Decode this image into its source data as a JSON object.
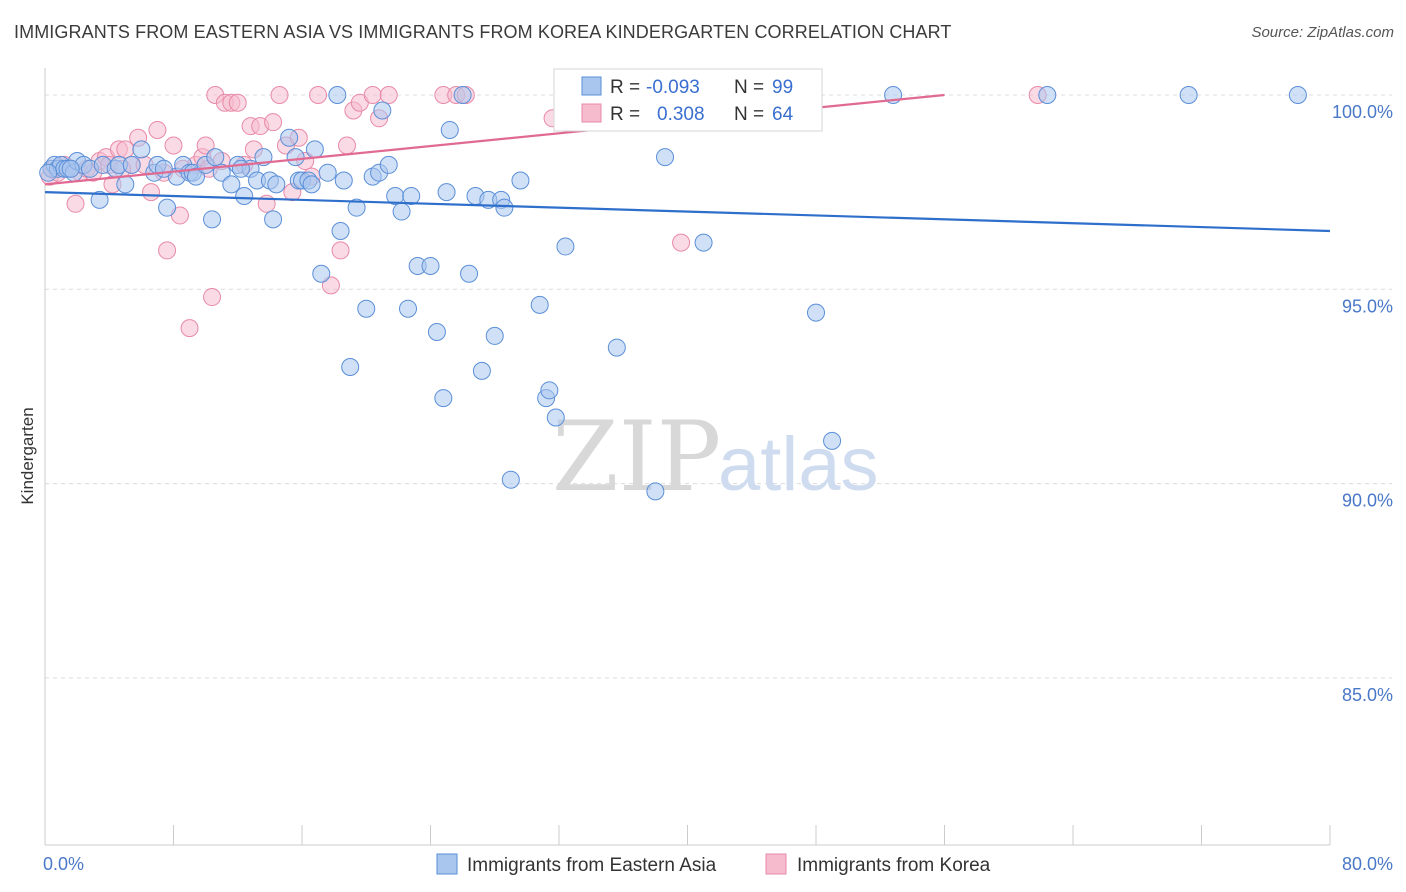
{
  "header": {
    "title": "IMMIGRANTS FROM EASTERN ASIA VS IMMIGRANTS FROM KOREA KINDERGARTEN CORRELATION CHART",
    "source": "Source: ZipAtlas.com"
  },
  "watermark": {
    "zip": "ZIP",
    "atlas": "atlas"
  },
  "colors": {
    "blue_fill": "#a9c6ee",
    "blue_stroke": "#5b8fd8",
    "blue_line": "#2f6fcc",
    "pink_fill": "#f6bccd",
    "pink_stroke": "#e88aa8",
    "pink_line": "#e06a92",
    "grid": "#dcdcdc",
    "tick_text": "#4a78c8"
  },
  "stats": {
    "r_label": "R =",
    "n_label": "N =",
    "rows": [
      {
        "r": "-0.093",
        "n": "99",
        "color": "blue"
      },
      {
        "r": "0.308",
        "n": "64",
        "color": "pink"
      }
    ]
  },
  "legend": {
    "items": [
      {
        "label": "Immigrants from Eastern Asia",
        "color": "blue"
      },
      {
        "label": "Immigrants from Korea",
        "color": "pink"
      }
    ]
  },
  "chart_data": {
    "type": "scatter",
    "title": "IMMIGRANTS FROM EASTERN ASIA VS IMMIGRANTS FROM KOREA KINDERGARTEN CORRELATION CHART",
    "xlabel": "",
    "ylabel": "Kindergarten",
    "xlim": [
      0,
      80
    ],
    "ylim": [
      80.7,
      100.9
    ],
    "x_tick_labels": [
      {
        "value": 0,
        "label": "0.0%"
      },
      {
        "value": 80,
        "label": "80.0%"
      }
    ],
    "y_tick_labels": [
      {
        "value": 100,
        "label": "100.0%"
      },
      {
        "value": 95,
        "label": "95.0%"
      },
      {
        "value": 90,
        "label": "90.0%"
      },
      {
        "value": 85,
        "label": "85.0%"
      }
    ],
    "grid": true,
    "legend_position": "bottom-center",
    "series": [
      {
        "name": "Immigrants from Eastern Asia",
        "color": "blue",
        "trend": {
          "x": [
            0,
            80
          ],
          "y": [
            97.5,
            96.5
          ]
        },
        "points": [
          [
            0.4,
            98.1
          ],
          [
            0.6,
            98.2
          ],
          [
            0.8,
            98.1
          ],
          [
            1.0,
            98.2
          ],
          [
            1.2,
            98.1
          ],
          [
            1.4,
            98.1
          ],
          [
            1.8,
            98.0
          ],
          [
            2.0,
            98.3
          ],
          [
            2.4,
            98.2
          ],
          [
            2.8,
            98.1
          ],
          [
            3.4,
            97.3
          ],
          [
            3.6,
            98.2
          ],
          [
            4.4,
            98.1
          ],
          [
            4.6,
            98.2
          ],
          [
            5.0,
            97.7
          ],
          [
            5.4,
            98.2
          ],
          [
            6.0,
            98.6
          ],
          [
            6.8,
            98.0
          ],
          [
            7.0,
            98.2
          ],
          [
            7.6,
            97.1
          ],
          [
            8.2,
            97.9
          ],
          [
            8.6,
            98.2
          ],
          [
            9.0,
            98.0
          ],
          [
            9.2,
            98.0
          ],
          [
            9.4,
            97.9
          ],
          [
            10.0,
            98.2
          ],
          [
            10.4,
            96.8
          ],
          [
            10.6,
            98.4
          ],
          [
            11.0,
            98.0
          ],
          [
            11.6,
            97.7
          ],
          [
            12.0,
            98.2
          ],
          [
            12.4,
            97.4
          ],
          [
            12.8,
            98.1
          ],
          [
            13.2,
            97.8
          ],
          [
            13.6,
            98.4
          ],
          [
            14.0,
            97.8
          ],
          [
            14.2,
            96.8
          ],
          [
            14.4,
            97.7
          ],
          [
            15.2,
            98.9
          ],
          [
            15.6,
            98.4
          ],
          [
            15.8,
            97.8
          ],
          [
            16.0,
            97.8
          ],
          [
            16.4,
            97.8
          ],
          [
            16.6,
            97.7
          ],
          [
            16.8,
            98.6
          ],
          [
            17.2,
            95.4
          ],
          [
            17.6,
            98.0
          ],
          [
            18.2,
            100.0
          ],
          [
            18.4,
            96.5
          ],
          [
            18.6,
            97.8
          ],
          [
            19.0,
            93.0
          ],
          [
            19.4,
            97.1
          ],
          [
            20.0,
            94.5
          ],
          [
            20.4,
            97.9
          ],
          [
            20.8,
            98.0
          ],
          [
            21.0,
            99.6
          ],
          [
            21.4,
            98.2
          ],
          [
            21.8,
            97.4
          ],
          [
            22.2,
            97.0
          ],
          [
            22.6,
            94.5
          ],
          [
            22.8,
            97.4
          ],
          [
            23.2,
            95.6
          ],
          [
            24.0,
            95.6
          ],
          [
            24.4,
            93.9
          ],
          [
            24.8,
            92.2
          ],
          [
            25.0,
            97.5
          ],
          [
            25.2,
            99.1
          ],
          [
            26.0,
            100.0
          ],
          [
            26.4,
            95.4
          ],
          [
            26.8,
            97.4
          ],
          [
            27.2,
            92.9
          ],
          [
            27.6,
            97.3
          ],
          [
            28.0,
            93.8
          ],
          [
            28.4,
            97.3
          ],
          [
            28.6,
            97.1
          ],
          [
            29.0,
            90.1
          ],
          [
            29.6,
            97.8
          ],
          [
            30.8,
            94.6
          ],
          [
            31.2,
            92.2
          ],
          [
            31.4,
            92.4
          ],
          [
            31.8,
            91.7
          ],
          [
            32.4,
            96.1
          ],
          [
            34.0,
            100.0
          ],
          [
            35.6,
            93.5
          ],
          [
            37.4,
            100.0
          ],
          [
            38.0,
            89.8
          ],
          [
            38.6,
            98.4
          ],
          [
            41.0,
            96.2
          ],
          [
            43.4,
            100.0
          ],
          [
            48.0,
            94.4
          ],
          [
            49.0,
            91.1
          ],
          [
            52.8,
            100.0
          ],
          [
            62.4,
            100.0
          ],
          [
            71.2,
            100.0
          ],
          [
            78.0,
            100.0
          ],
          [
            0.2,
            98.0
          ],
          [
            1.6,
            98.1
          ],
          [
            7.4,
            98.1
          ],
          [
            12.2,
            98.1
          ]
        ]
      },
      {
        "name": "Immigrants from Korea",
        "color": "pink",
        "trend": {
          "x": [
            0,
            56
          ],
          "y": [
            97.7,
            100.0
          ]
        },
        "points": [
          [
            0.3,
            97.9
          ],
          [
            0.5,
            98.1
          ],
          [
            0.8,
            98.0
          ],
          [
            1.2,
            98.2
          ],
          [
            1.6,
            98.1
          ],
          [
            1.9,
            97.2
          ],
          [
            2.2,
            98.0
          ],
          [
            2.6,
            98.1
          ],
          [
            3.0,
            98.0
          ],
          [
            3.4,
            98.3
          ],
          [
            3.8,
            98.4
          ],
          [
            4.0,
            98.2
          ],
          [
            4.2,
            97.7
          ],
          [
            4.6,
            98.6
          ],
          [
            5.0,
            98.6
          ],
          [
            5.4,
            98.2
          ],
          [
            5.8,
            98.9
          ],
          [
            6.2,
            98.2
          ],
          [
            6.6,
            97.5
          ],
          [
            7.0,
            99.1
          ],
          [
            7.4,
            98.0
          ],
          [
            7.6,
            96.0
          ],
          [
            8.0,
            98.7
          ],
          [
            8.4,
            96.9
          ],
          [
            8.6,
            98.1
          ],
          [
            9.0,
            94.0
          ],
          [
            9.4,
            98.2
          ],
          [
            9.8,
            98.4
          ],
          [
            10.0,
            98.7
          ],
          [
            10.2,
            98.1
          ],
          [
            10.4,
            94.8
          ],
          [
            10.6,
            100.0
          ],
          [
            11.0,
            98.3
          ],
          [
            11.2,
            99.8
          ],
          [
            11.6,
            99.8
          ],
          [
            12.0,
            99.8
          ],
          [
            12.4,
            98.2
          ],
          [
            12.8,
            99.2
          ],
          [
            13.0,
            98.6
          ],
          [
            13.4,
            99.2
          ],
          [
            13.8,
            97.2
          ],
          [
            14.2,
            99.3
          ],
          [
            14.6,
            100.0
          ],
          [
            15.0,
            98.7
          ],
          [
            15.4,
            97.5
          ],
          [
            15.8,
            98.9
          ],
          [
            16.2,
            98.3
          ],
          [
            16.6,
            97.9
          ],
          [
            17.0,
            100.0
          ],
          [
            17.8,
            95.1
          ],
          [
            18.4,
            96.0
          ],
          [
            18.8,
            98.7
          ],
          [
            19.2,
            99.6
          ],
          [
            19.6,
            99.8
          ],
          [
            20.4,
            100.0
          ],
          [
            20.8,
            99.4
          ],
          [
            21.4,
            100.0
          ],
          [
            24.8,
            100.0
          ],
          [
            25.6,
            100.0
          ],
          [
            26.2,
            100.0
          ],
          [
            31.6,
            99.4
          ],
          [
            39.6,
            96.2
          ],
          [
            61.8,
            100.0
          ],
          [
            4.8,
            98.1
          ]
        ]
      }
    ]
  }
}
